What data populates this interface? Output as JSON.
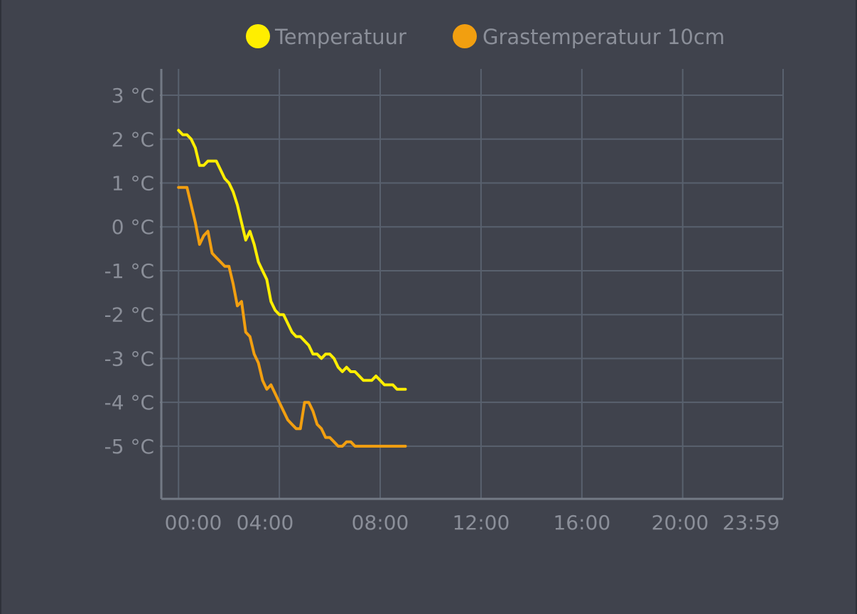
{
  "colors": {
    "background": "#40434d",
    "grid": "#59616e",
    "axis": "#737a85",
    "text": "#8b8f99"
  },
  "chart_data": {
    "type": "line",
    "title": "",
    "xlabel": "",
    "ylabel": "",
    "legend_position": "top-center",
    "grid": true,
    "x_ticks": [
      "00:00",
      "04:00",
      "08:00",
      "12:00",
      "16:00",
      "20:00",
      "23:59"
    ],
    "xlim": [
      "-00:41",
      "23:59"
    ],
    "y_ticks": [
      "-5 °C",
      "-4 °C",
      "-3 °C",
      "-2 °C",
      "-1 °C",
      "0 °C",
      "1 °C",
      "2 °C",
      "3 °C"
    ],
    "ylim": [
      -6.2,
      3.6
    ],
    "series": [
      {
        "name": "Temperatuur",
        "color": "#ffee00",
        "x": [
          "00:00",
          "00:10",
          "00:20",
          "00:30",
          "00:40",
          "00:50",
          "01:00",
          "01:10",
          "01:20",
          "01:30",
          "01:40",
          "01:50",
          "02:00",
          "02:10",
          "02:20",
          "02:30",
          "02:40",
          "02:50",
          "03:00",
          "03:10",
          "03:20",
          "03:30",
          "03:40",
          "03:50",
          "04:00",
          "04:10",
          "04:20",
          "04:30",
          "04:40",
          "04:50",
          "05:00",
          "05:10",
          "05:20",
          "05:30",
          "05:40",
          "05:50",
          "06:00",
          "06:10",
          "06:20",
          "06:30",
          "06:40",
          "06:50",
          "07:00",
          "07:10",
          "07:20",
          "07:30",
          "07:40",
          "07:50",
          "08:00",
          "08:10",
          "08:20",
          "08:30",
          "08:40",
          "08:50",
          "09:00"
        ],
        "values": [
          2.2,
          2.1,
          2.1,
          2.0,
          1.8,
          1.4,
          1.4,
          1.5,
          1.5,
          1.5,
          1.3,
          1.1,
          1.0,
          0.8,
          0.5,
          0.1,
          -0.3,
          -0.1,
          -0.4,
          -0.8,
          -1.0,
          -1.2,
          -1.7,
          -1.9,
          -2.0,
          -2.0,
          -2.2,
          -2.4,
          -2.5,
          -2.5,
          -2.6,
          -2.7,
          -2.9,
          -2.9,
          -3.0,
          -2.9,
          -2.9,
          -3.0,
          -3.2,
          -3.3,
          -3.2,
          -3.3,
          -3.3,
          -3.4,
          -3.5,
          -3.5,
          -3.5,
          -3.4,
          -3.5,
          -3.6,
          -3.6,
          -3.6,
          -3.7,
          -3.7,
          -3.7
        ]
      },
      {
        "name": "Grastemperatuur 10cm",
        "color": "#f29f10",
        "x": [
          "00:00",
          "00:10",
          "00:20",
          "00:30",
          "00:40",
          "00:50",
          "01:00",
          "01:10",
          "01:20",
          "01:30",
          "01:40",
          "01:50",
          "02:00",
          "02:10",
          "02:20",
          "02:30",
          "02:40",
          "02:50",
          "03:00",
          "03:10",
          "03:20",
          "03:30",
          "03:40",
          "03:50",
          "04:00",
          "04:10",
          "04:20",
          "04:30",
          "04:40",
          "04:50",
          "05:00",
          "05:10",
          "05:20",
          "05:30",
          "05:40",
          "05:50",
          "06:00",
          "06:10",
          "06:20",
          "06:30",
          "06:40",
          "06:50",
          "07:00",
          "07:10",
          "07:20",
          "07:30",
          "07:40",
          "07:50",
          "08:00",
          "08:10",
          "08:20",
          "08:30",
          "08:40",
          "08:50",
          "09:00"
        ],
        "values": [
          0.9,
          0.9,
          0.9,
          0.5,
          0.1,
          -0.4,
          -0.2,
          -0.1,
          -0.6,
          -0.7,
          -0.8,
          -0.9,
          -0.9,
          -1.3,
          -1.8,
          -1.7,
          -2.4,
          -2.5,
          -2.9,
          -3.1,
          -3.5,
          -3.7,
          -3.6,
          -3.8,
          -4.0,
          -4.2,
          -4.4,
          -4.5,
          -4.6,
          -4.6,
          -4.0,
          -4.0,
          -4.2,
          -4.5,
          -4.6,
          -4.8,
          -4.8,
          -4.9,
          -5.0,
          -5.0,
          -4.9,
          -4.9,
          -5.0,
          -5.0,
          -5.0,
          -5.0,
          -5.0,
          -5.0,
          -5.0,
          -5.0,
          -5.0,
          -5.0,
          -5.0,
          -5.0,
          -5.0
        ]
      }
    ]
  }
}
